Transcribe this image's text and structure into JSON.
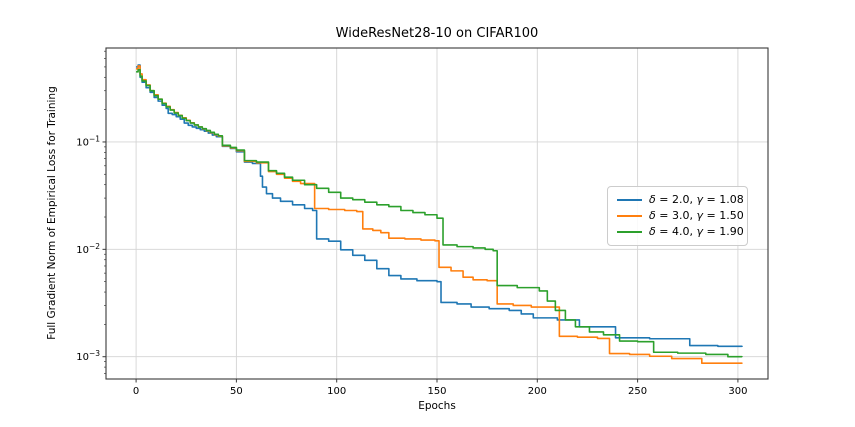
{
  "chart_data": {
    "type": "line",
    "title": "WideResNet28-10 on CIFAR100",
    "xlabel": "Epochs",
    "ylabel": "Full Gradient Norm of Empirical Loss for Training",
    "x_scale": "linear",
    "y_scale": "log",
    "xlim": [
      -15,
      315
    ],
    "ylim": [
      0.00062,
      0.75
    ],
    "xticks": [
      0,
      50,
      100,
      150,
      200,
      250,
      300
    ],
    "ytick_exponents": [
      -1,
      -2,
      -3
    ],
    "grid": true,
    "grid_color": "#d4d4d4",
    "spine_color": "#3a3a3a",
    "legend_position": "center-right",
    "line_style": "step-after",
    "series": [
      {
        "name": "δ = 2.0, γ = 1.08",
        "delta": "2.0",
        "gamma": "1.08",
        "color": "#1f77b4",
        "points": [
          [
            0,
            0.5
          ],
          [
            1,
            0.52
          ],
          [
            2,
            0.4
          ],
          [
            3,
            0.36
          ],
          [
            5,
            0.32
          ],
          [
            7,
            0.29
          ],
          [
            9,
            0.26
          ],
          [
            11,
            0.24
          ],
          [
            13,
            0.22
          ],
          [
            15,
            0.205
          ],
          [
            16,
            0.185
          ],
          [
            18,
            0.18
          ],
          [
            20,
            0.172
          ],
          [
            22,
            0.163
          ],
          [
            24,
            0.15
          ],
          [
            26,
            0.143
          ],
          [
            28,
            0.138
          ],
          [
            30,
            0.134
          ],
          [
            32,
            0.13
          ],
          [
            34,
            0.126
          ],
          [
            36,
            0.121
          ],
          [
            38,
            0.116
          ],
          [
            40,
            0.112
          ],
          [
            43,
            0.091
          ],
          [
            47,
            0.087
          ],
          [
            50,
            0.081
          ],
          [
            54,
            0.065
          ],
          [
            58,
            0.063
          ],
          [
            62,
            0.048
          ],
          [
            63,
            0.038
          ],
          [
            65,
            0.033
          ],
          [
            68,
            0.03
          ],
          [
            72,
            0.028
          ],
          [
            78,
            0.026
          ],
          [
            84,
            0.024
          ],
          [
            88,
            0.023
          ],
          [
            90,
            0.0125
          ],
          [
            96,
            0.0119
          ],
          [
            102,
            0.0099
          ],
          [
            108,
            0.0088
          ],
          [
            114,
            0.0079
          ],
          [
            120,
            0.0066
          ],
          [
            126,
            0.0057
          ],
          [
            132,
            0.0053
          ],
          [
            140,
            0.0051
          ],
          [
            150,
            0.005
          ],
          [
            152,
            0.0032
          ],
          [
            160,
            0.0031
          ],
          [
            167,
            0.0029
          ],
          [
            176,
            0.0028
          ],
          [
            186,
            0.0027
          ],
          [
            192,
            0.0025
          ],
          [
            198,
            0.0023
          ],
          [
            210,
            0.0022
          ],
          [
            221,
            0.0019
          ],
          [
            239,
            0.0015
          ],
          [
            256,
            0.00147
          ],
          [
            276,
            0.00127
          ],
          [
            290,
            0.00125
          ],
          [
            302,
            0.00123
          ]
        ]
      },
      {
        "name": "δ = 3.0, γ = 1.50",
        "delta": "3.0",
        "gamma": "1.50",
        "color": "#ff7f0e",
        "points": [
          [
            0,
            0.48
          ],
          [
            1,
            0.51
          ],
          [
            2,
            0.43
          ],
          [
            3,
            0.38
          ],
          [
            5,
            0.34
          ],
          [
            7,
            0.3
          ],
          [
            9,
            0.275
          ],
          [
            11,
            0.25
          ],
          [
            13,
            0.23
          ],
          [
            15,
            0.215
          ],
          [
            17,
            0.2
          ],
          [
            19,
            0.188
          ],
          [
            21,
            0.177
          ],
          [
            23,
            0.168
          ],
          [
            25,
            0.159
          ],
          [
            27,
            0.151
          ],
          [
            29,
            0.144
          ],
          [
            31,
            0.138
          ],
          [
            33,
            0.132
          ],
          [
            35,
            0.127
          ],
          [
            37,
            0.122
          ],
          [
            39,
            0.117
          ],
          [
            41,
            0.113
          ],
          [
            43,
            0.092
          ],
          [
            47,
            0.088
          ],
          [
            50,
            0.083
          ],
          [
            54,
            0.066
          ],
          [
            60,
            0.064
          ],
          [
            66,
            0.053
          ],
          [
            70,
            0.05
          ],
          [
            74,
            0.046
          ],
          [
            78,
            0.043
          ],
          [
            82,
            0.041
          ],
          [
            89,
            0.024
          ],
          [
            96,
            0.0235
          ],
          [
            104,
            0.023
          ],
          [
            110,
            0.0225
          ],
          [
            113,
            0.0155
          ],
          [
            118,
            0.015
          ],
          [
            122,
            0.0143
          ],
          [
            126,
            0.0127
          ],
          [
            134,
            0.0125
          ],
          [
            142,
            0.0122
          ],
          [
            149,
            0.012
          ],
          [
            151,
            0.0068
          ],
          [
            157,
            0.0063
          ],
          [
            163,
            0.0055
          ],
          [
            168,
            0.0052
          ],
          [
            175,
            0.0051
          ],
          [
            180,
            0.0031
          ],
          [
            188,
            0.003
          ],
          [
            197,
            0.0029
          ],
          [
            211,
            0.00155
          ],
          [
            220,
            0.00152
          ],
          [
            230,
            0.00148
          ],
          [
            236,
            0.00107
          ],
          [
            246,
            0.00105
          ],
          [
            256,
            0.00101
          ],
          [
            267,
            0.00096
          ],
          [
            282,
            0.00087
          ],
          [
            302,
            0.00086
          ]
        ]
      },
      {
        "name": "δ = 4.0, γ = 1.90",
        "delta": "4.0",
        "gamma": "1.90",
        "color": "#2ca02c",
        "points": [
          [
            0,
            0.45
          ],
          [
            1,
            0.47
          ],
          [
            2,
            0.41
          ],
          [
            3,
            0.37
          ],
          [
            5,
            0.335
          ],
          [
            7,
            0.3
          ],
          [
            9,
            0.27
          ],
          [
            11,
            0.25
          ],
          [
            13,
            0.228
          ],
          [
            15,
            0.212
          ],
          [
            17,
            0.198
          ],
          [
            19,
            0.186
          ],
          [
            21,
            0.176
          ],
          [
            23,
            0.166
          ],
          [
            25,
            0.158
          ],
          [
            27,
            0.15
          ],
          [
            29,
            0.144
          ],
          [
            31,
            0.138
          ],
          [
            33,
            0.133
          ],
          [
            35,
            0.128
          ],
          [
            37,
            0.123
          ],
          [
            39,
            0.118
          ],
          [
            41,
            0.114
          ],
          [
            43,
            0.093
          ],
          [
            47,
            0.089
          ],
          [
            50,
            0.084
          ],
          [
            54,
            0.067
          ],
          [
            60,
            0.065
          ],
          [
            66,
            0.054
          ],
          [
            70,
            0.051
          ],
          [
            74,
            0.047
          ],
          [
            78,
            0.044
          ],
          [
            84,
            0.04
          ],
          [
            90,
            0.037
          ],
          [
            96,
            0.034
          ],
          [
            102,
            0.03
          ],
          [
            108,
            0.029
          ],
          [
            114,
            0.0275
          ],
          [
            120,
            0.026
          ],
          [
            126,
            0.025
          ],
          [
            132,
            0.023
          ],
          [
            138,
            0.022
          ],
          [
            144,
            0.021
          ],
          [
            150,
            0.0195
          ],
          [
            153,
            0.011
          ],
          [
            160,
            0.0106
          ],
          [
            168,
            0.0103
          ],
          [
            174,
            0.01
          ],
          [
            178,
            0.0097
          ],
          [
            180,
            0.0046
          ],
          [
            190,
            0.0044
          ],
          [
            201,
            0.0041
          ],
          [
            205,
            0.0033
          ],
          [
            209,
            0.0027
          ],
          [
            214,
            0.0022
          ],
          [
            219,
            0.0019
          ],
          [
            226,
            0.0017
          ],
          [
            233,
            0.0016
          ],
          [
            241,
            0.0014
          ],
          [
            250,
            0.00138
          ],
          [
            258,
            0.0011
          ],
          [
            270,
            0.00108
          ],
          [
            284,
            0.00105
          ],
          [
            295,
            0.001
          ],
          [
            302,
            0.00099
          ]
        ]
      }
    ]
  }
}
